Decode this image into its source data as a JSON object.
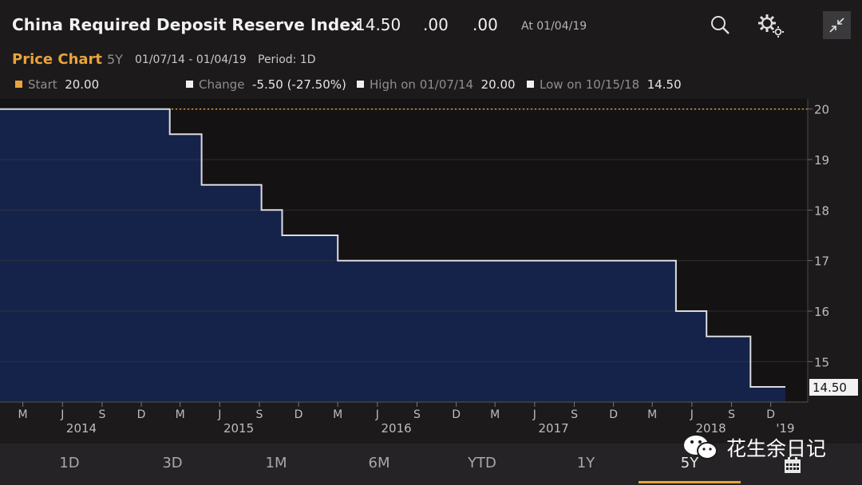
{
  "header": {
    "title": "China Required Deposit Reserve Index",
    "last": "14.50",
    "change": ".00",
    "pct_change": ".00",
    "as_of": "At 01/04/19"
  },
  "subheader": {
    "label": "Price Chart",
    "period_code": "5Y",
    "date_range": "01/07/14 - 01/04/19",
    "period": "Period: 1D"
  },
  "stats": {
    "start_label": "Start",
    "start_value": "20.00",
    "change_label": "Change",
    "change_value": "-5.50 (-27.50%)",
    "high_label": "High on 01/07/14",
    "high_value": "20.00",
    "low_label": "Low on 10/15/18",
    "low_value": "14.50"
  },
  "colors": {
    "accent": "#e8a33d",
    "area_fill": "#15234a",
    "line": "#dcdcdc",
    "grid": "#3a3a3a"
  },
  "chart_data": {
    "type": "area",
    "title": "China Required Deposit Reserve Index",
    "step": true,
    "x": [
      "2014-01-07",
      "2015-02-05",
      "2015-04-20",
      "2015-09-06",
      "2015-10-24",
      "2016-03-01",
      "2018-04-25",
      "2018-07-05",
      "2018-10-15",
      "2019-01-04"
    ],
    "values": [
      20.0,
      19.5,
      18.5,
      18.0,
      17.5,
      17.0,
      16.0,
      15.5,
      14.5,
      14.5
    ],
    "reference_line": {
      "value": 20.0,
      "label": "High"
    },
    "last_label": "14.50",
    "ylim": [
      14.2,
      20.2
    ],
    "yticks": [
      15,
      16,
      17,
      18,
      19,
      20
    ],
    "ytick_labels": [
      "15",
      "16",
      "17",
      "18",
      "19",
      "20"
    ],
    "xlim": [
      "2014-01-07",
      "2019-01-04"
    ],
    "month_ticks": [
      {
        "label": "M",
        "date": "2014-03-01"
      },
      {
        "label": "J",
        "date": "2014-06-01"
      },
      {
        "label": "S",
        "date": "2014-09-01"
      },
      {
        "label": "D",
        "date": "2014-12-01"
      },
      {
        "label": "M",
        "date": "2015-03-01"
      },
      {
        "label": "J",
        "date": "2015-06-01"
      },
      {
        "label": "S",
        "date": "2015-09-01"
      },
      {
        "label": "D",
        "date": "2015-12-01"
      },
      {
        "label": "M",
        "date": "2016-03-01"
      },
      {
        "label": "J",
        "date": "2016-06-01"
      },
      {
        "label": "S",
        "date": "2016-09-01"
      },
      {
        "label": "D",
        "date": "2016-12-01"
      },
      {
        "label": "M",
        "date": "2017-03-01"
      },
      {
        "label": "J",
        "date": "2017-06-01"
      },
      {
        "label": "S",
        "date": "2017-09-01"
      },
      {
        "label": "D",
        "date": "2017-12-01"
      },
      {
        "label": "M",
        "date": "2018-03-01"
      },
      {
        "label": "J",
        "date": "2018-06-01"
      },
      {
        "label": "S",
        "date": "2018-09-01"
      },
      {
        "label": "D",
        "date": "2018-12-01"
      }
    ],
    "year_ticks": [
      {
        "label": "2014",
        "date": "2014-07-15"
      },
      {
        "label": "2015",
        "date": "2015-07-15"
      },
      {
        "label": "2016",
        "date": "2016-07-15"
      },
      {
        "label": "2017",
        "date": "2017-07-15"
      },
      {
        "label": "2018",
        "date": "2018-07-15"
      },
      {
        "label": "'19",
        "date": "2019-01-04"
      }
    ]
  },
  "tabs": [
    {
      "label": "1D"
    },
    {
      "label": "3D"
    },
    {
      "label": "1M"
    },
    {
      "label": "6M"
    },
    {
      "label": "YTD"
    },
    {
      "label": "1Y"
    },
    {
      "label": "5Y"
    }
  ],
  "active_tab": "5Y",
  "watermark": {
    "text": "花生余日记"
  },
  "icons": {
    "search": "search-icon",
    "settings": "gear-icon",
    "collapse": "collapse-icon",
    "calendar": "calendar-icon"
  }
}
